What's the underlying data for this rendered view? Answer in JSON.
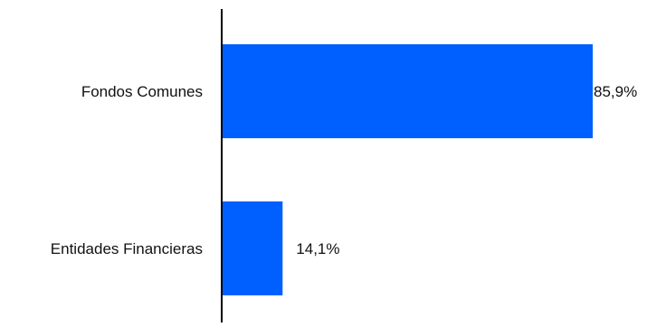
{
  "chart_data": {
    "type": "bar",
    "orientation": "horizontal",
    "title": "",
    "xlabel": "",
    "ylabel": "",
    "categories": [
      "Fondos Comunes",
      "Entidades Financieras"
    ],
    "values": [
      85.9,
      14.1
    ],
    "value_labels": [
      "85,9%",
      "14,1%"
    ],
    "xlim": [
      0,
      100
    ],
    "grid": false,
    "bar_color": "#0060FF",
    "axis_color": "#000000"
  }
}
